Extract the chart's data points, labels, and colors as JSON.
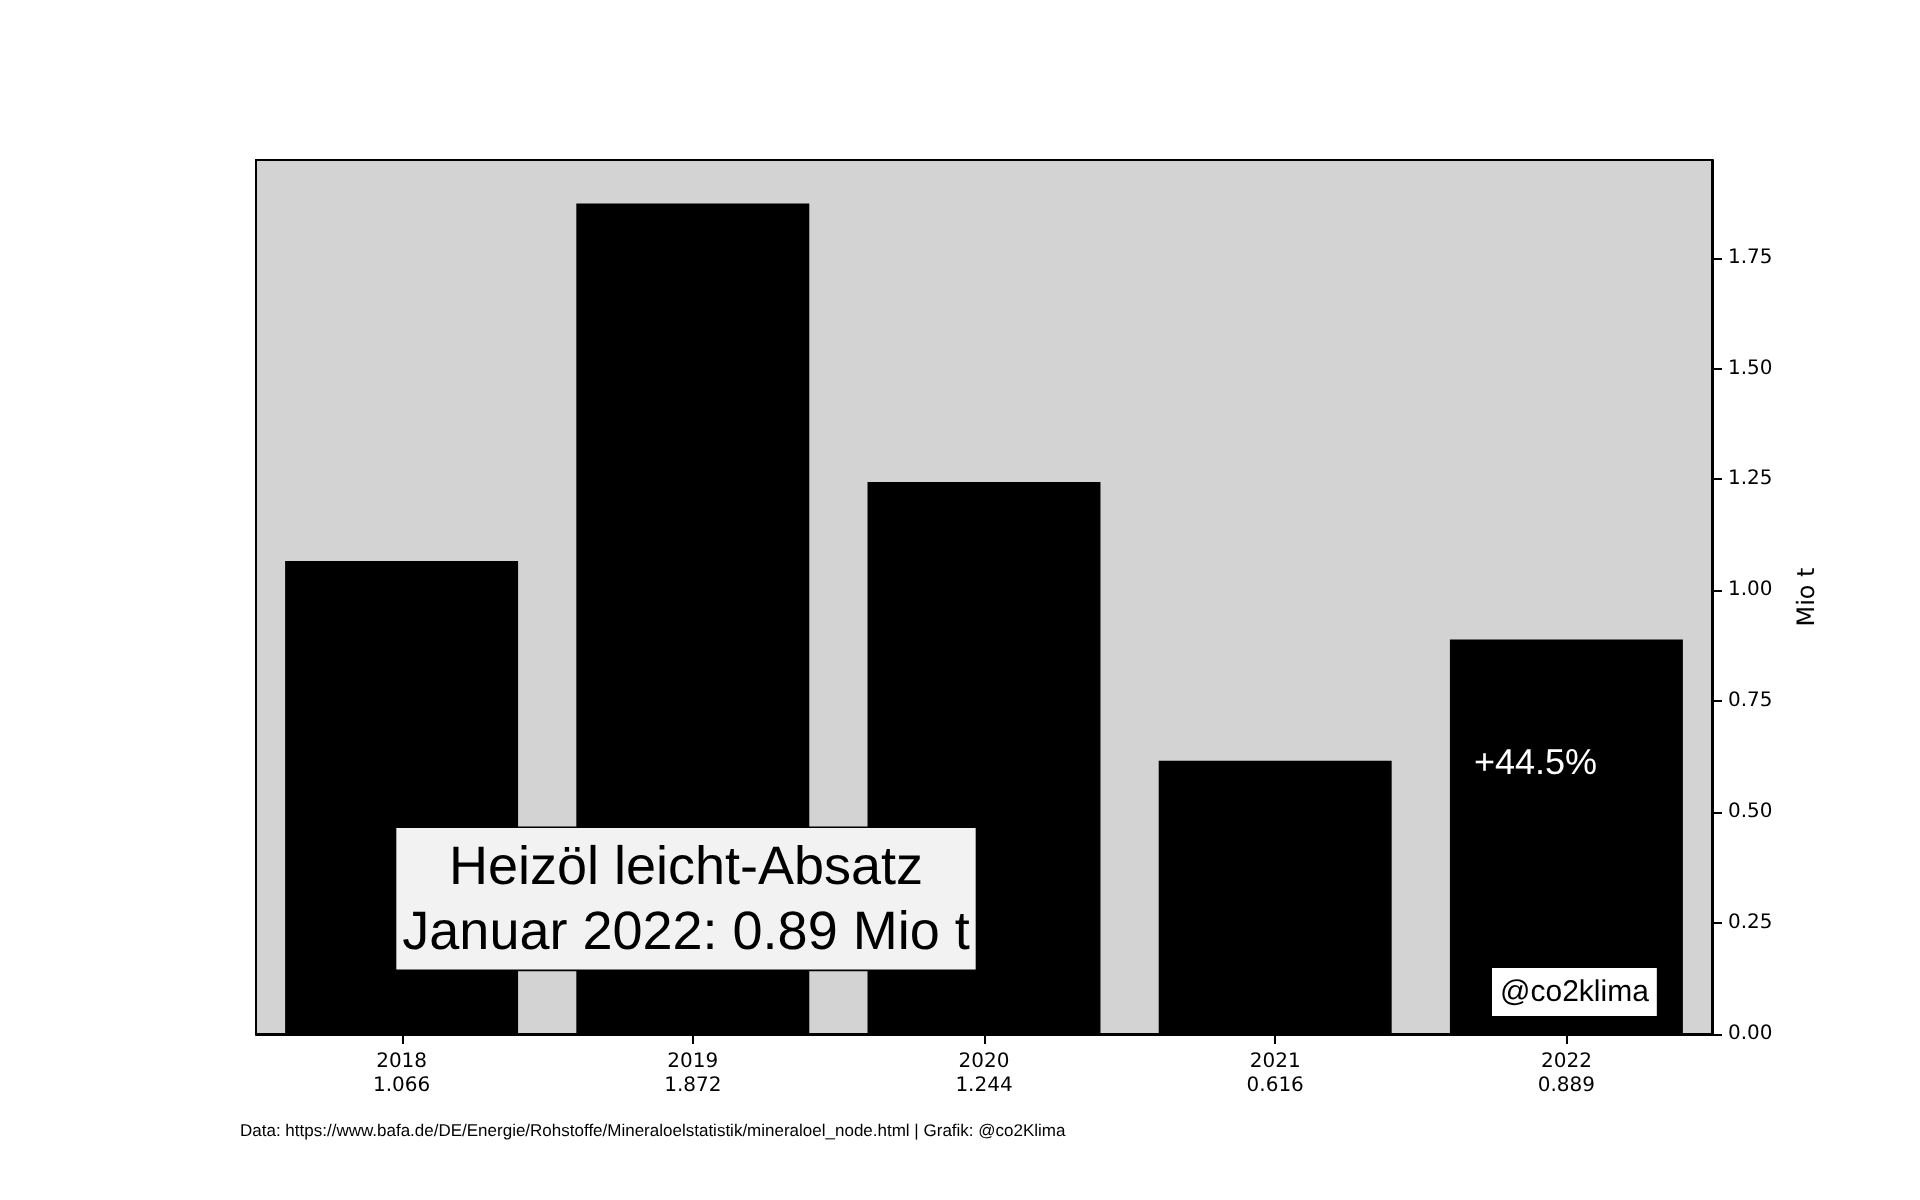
{
  "chart_data": {
    "type": "bar",
    "categories": [
      "2018\n1.066",
      "2019\n1.872",
      "2020\n1.244",
      "2021\n0.616",
      "2022\n0.889"
    ],
    "values": [
      1.066,
      1.872,
      1.244,
      0.616,
      0.889
    ],
    "color": "#000000",
    "ylabel": "Mio t",
    "ylim": [
      0,
      1.97
    ],
    "yticks": [
      {
        "value": 0,
        "label": "0.00"
      },
      {
        "value": 0.25,
        "label": "0.25"
      },
      {
        "value": 0.5,
        "label": "0.50"
      },
      {
        "value": 0.75,
        "label": "0.75"
      },
      {
        "value": 1,
        "label": "1.00"
      },
      {
        "value": 1.25,
        "label": "1.25"
      },
      {
        "value": 1.5,
        "label": "1.50"
      },
      {
        "value": 1.75,
        "label": "1.75"
      }
    ],
    "grid": false,
    "annotations": [
      "Heizöl leicht-Absatz\nJanuar 2022: 0.89 Mio t",
      "+44.5%",
      "@co2klima",
      "Data: https://www.bafa.de/DE/Energie/Rohstoffe/Mineraloelstatistik/mineraloel_node.html | Grafik: @co2Klima"
    ]
  }
}
